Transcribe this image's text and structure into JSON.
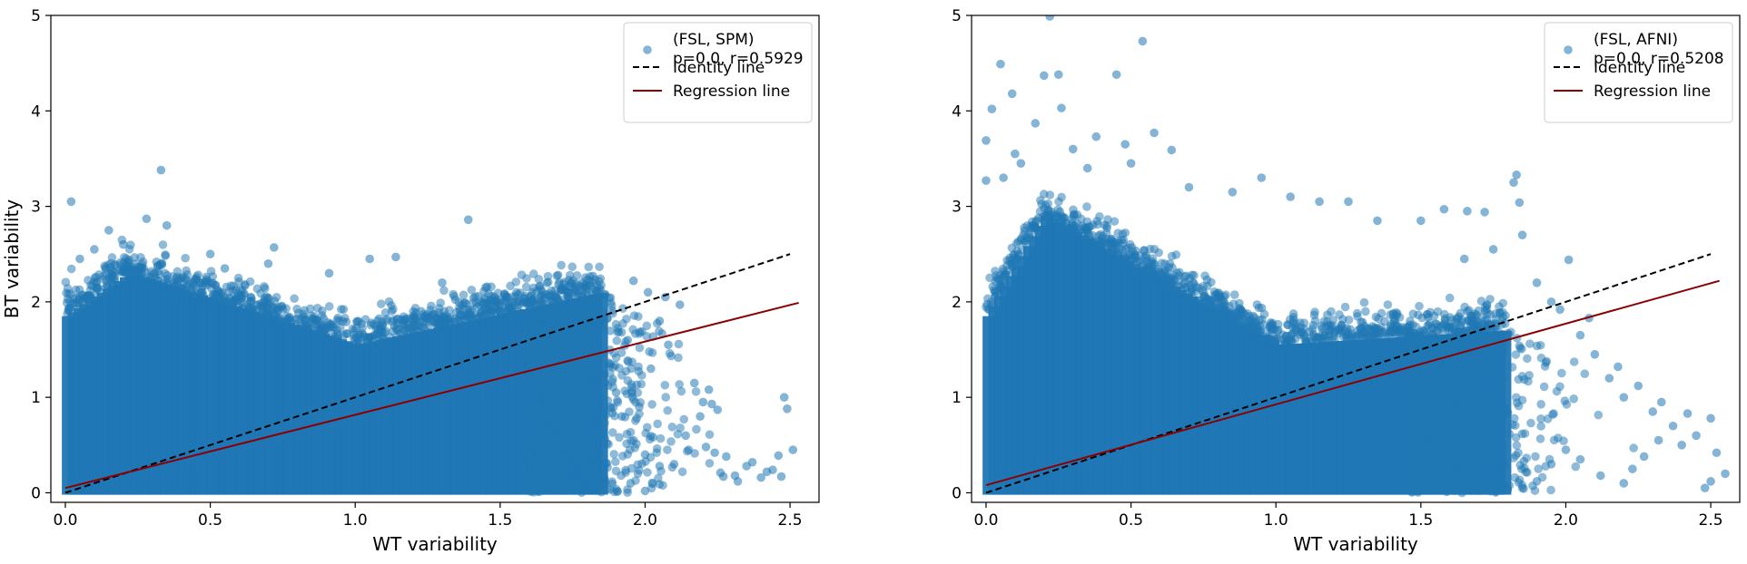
{
  "chart_data": [
    {
      "type": "scatter",
      "xlabel": "WT variability",
      "ylabel": "BT variability",
      "xlim": [
        -0.05,
        2.6
      ],
      "ylim": [
        -0.1,
        5.0
      ],
      "xticks": [
        "0.0",
        "0.5",
        "1.0",
        "1.5",
        "2.0",
        "2.5"
      ],
      "yticks": [
        "0",
        "1",
        "2",
        "3",
        "4",
        "5"
      ],
      "grid": false,
      "legend_position": "top-right",
      "colors": {
        "points": "#1f77b4",
        "identity": "#000000",
        "regression": "#8b0000"
      },
      "legend": [
        {
          "label_line1": "(FSL, SPM)",
          "label_line2": "p=0.0, r=0.5929",
          "kind": "points"
        },
        {
          "label_line1": "Identity line",
          "kind": "identity"
        },
        {
          "label_line1": "Regression line",
          "kind": "regression"
        }
      ],
      "identity_line": {
        "x": [
          0.0,
          2.5
        ],
        "y": [
          0.0,
          2.5
        ]
      },
      "regression_line": {
        "x": [
          0.0,
          2.53
        ],
        "y": [
          0.05,
          1.99
        ]
      },
      "density": {
        "peak_x": 0.22,
        "peak_y": 2.3,
        "end_x": 1.85,
        "end_y": 2.1,
        "edge_x": 1.6,
        "spread": 0.32
      },
      "outliers": [
        [
          0.33,
          3.38
        ],
        [
          1.39,
          2.86
        ],
        [
          0.02,
          3.05
        ],
        [
          0.28,
          2.87
        ],
        [
          0.35,
          2.8
        ],
        [
          0.05,
          2.45
        ],
        [
          0.1,
          2.55
        ],
        [
          0.15,
          2.75
        ],
        [
          0.2,
          2.6
        ],
        [
          0.5,
          2.5
        ],
        [
          0.55,
          2.35
        ],
        [
          0.7,
          2.4
        ],
        [
          0.72,
          2.57
        ],
        [
          0.91,
          2.3
        ],
        [
          1.05,
          2.45
        ],
        [
          1.14,
          2.47
        ],
        [
          1.3,
          2.2
        ],
        [
          1.45,
          2.15
        ],
        [
          1.7,
          2.28
        ],
        [
          1.82,
          2.27
        ],
        [
          1.96,
          2.22
        ],
        [
          2.01,
          2.1
        ],
        [
          2.07,
          2.05
        ],
        [
          2.12,
          1.97
        ],
        [
          2.05,
          1.8
        ],
        [
          2.08,
          1.55
        ],
        [
          2.02,
          1.3
        ],
        [
          2.17,
          1.15
        ],
        [
          2.2,
          0.95
        ],
        [
          2.23,
          0.93
        ],
        [
          2.25,
          0.87
        ],
        [
          2.22,
          1.08
        ],
        [
          2.19,
          0.8
        ],
        [
          2.14,
          0.6
        ],
        [
          2.21,
          0.48
        ],
        [
          2.28,
          0.38
        ],
        [
          2.27,
          0.17
        ],
        [
          2.32,
          0.12
        ],
        [
          2.35,
          0.28
        ],
        [
          2.37,
          0.32
        ],
        [
          2.44,
          0.24
        ],
        [
          2.47,
          0.17
        ],
        [
          2.46,
          0.39
        ],
        [
          2.51,
          0.45
        ],
        [
          2.4,
          0.16
        ],
        [
          2.42,
          0.22
        ],
        [
          2.31,
          0.18
        ],
        [
          2.26,
          0.21
        ],
        [
          2.24,
          0.42
        ],
        [
          2.15,
          0.45
        ],
        [
          2.1,
          0.3
        ],
        [
          2.05,
          0.28
        ],
        [
          2.0,
          0.4
        ],
        [
          1.96,
          0.55
        ],
        [
          1.92,
          0.8
        ],
        [
          1.98,
          0.9
        ],
        [
          1.9,
          1.05
        ],
        [
          1.88,
          1.35
        ],
        [
          1.94,
          1.6
        ],
        [
          1.86,
          0.15
        ],
        [
          1.95,
          0.1
        ],
        [
          2.0,
          0.02
        ],
        [
          2.48,
          1.0
        ],
        [
          2.49,
          0.88
        ],
        [
          1.76,
          0.2
        ],
        [
          1.8,
          0.05
        ]
      ]
    },
    {
      "type": "scatter",
      "xlabel": "WT variability",
      "ylabel": "",
      "xlim": [
        -0.05,
        2.6
      ],
      "ylim": [
        -0.1,
        5.0
      ],
      "xticks": [
        "0.0",
        "0.5",
        "1.0",
        "1.5",
        "2.0",
        "2.5"
      ],
      "yticks": [
        "0",
        "1",
        "2",
        "3",
        "4",
        "5"
      ],
      "grid": false,
      "legend_position": "top-right",
      "colors": {
        "points": "#1f77b4",
        "identity": "#000000",
        "regression": "#8b0000"
      },
      "legend": [
        {
          "label_line1": "(FSL, AFNI)",
          "label_line2": "p=0.0, r=0.5208",
          "kind": "points"
        },
        {
          "label_line1": "Identity line",
          "kind": "identity"
        },
        {
          "label_line1": "Regression line",
          "kind": "regression"
        }
      ],
      "identity_line": {
        "x": [
          0.0,
          2.5
        ],
        "y": [
          0.0,
          2.5
        ]
      },
      "regression_line": {
        "x": [
          0.0,
          2.53
        ],
        "y": [
          0.08,
          2.22
        ]
      },
      "density": {
        "peak_x": 0.2,
        "peak_y": 2.9,
        "end_x": 1.8,
        "end_y": 1.7,
        "edge_x": 1.45,
        "spread": 0.36
      },
      "outliers": [
        [
          0.22,
          4.99
        ],
        [
          0.54,
          4.73
        ],
        [
          0.05,
          4.49
        ],
        [
          0.2,
          4.37
        ],
        [
          0.25,
          4.38
        ],
        [
          0.45,
          4.38
        ],
        [
          0.09,
          4.18
        ],
        [
          0.0,
          3.69
        ],
        [
          0.02,
          4.02
        ],
        [
          0.17,
          3.87
        ],
        [
          0.26,
          4.03
        ],
        [
          0.1,
          3.55
        ],
        [
          0.3,
          3.6
        ],
        [
          0.38,
          3.73
        ],
        [
          0.48,
          3.65
        ],
        [
          0.58,
          3.77
        ],
        [
          0.64,
          3.59
        ],
        [
          0.0,
          3.27
        ],
        [
          0.06,
          3.3
        ],
        [
          0.12,
          3.45
        ],
        [
          0.35,
          3.4
        ],
        [
          0.5,
          3.45
        ],
        [
          0.7,
          3.2
        ],
        [
          0.85,
          3.15
        ],
        [
          0.95,
          3.3
        ],
        [
          1.05,
          3.1
        ],
        [
          1.15,
          3.05
        ],
        [
          1.25,
          3.05
        ],
        [
          1.35,
          2.85
        ],
        [
          1.5,
          2.85
        ],
        [
          1.58,
          2.97
        ],
        [
          1.66,
          2.95
        ],
        [
          1.72,
          2.94
        ],
        [
          1.82,
          3.25
        ],
        [
          1.83,
          3.33
        ],
        [
          1.84,
          3.04
        ],
        [
          1.85,
          2.7
        ],
        [
          1.75,
          2.55
        ],
        [
          1.65,
          2.45
        ],
        [
          1.9,
          2.2
        ],
        [
          1.95,
          2.0
        ],
        [
          2.01,
          2.44
        ],
        [
          2.05,
          1.65
        ],
        [
          2.1,
          1.45
        ],
        [
          2.15,
          1.2
        ],
        [
          2.2,
          1.0
        ],
        [
          2.25,
          1.12
        ],
        [
          2.3,
          0.85
        ],
        [
          2.37,
          0.7
        ],
        [
          2.42,
          0.83
        ],
        [
          2.45,
          0.6
        ],
        [
          2.5,
          0.78
        ],
        [
          2.52,
          0.42
        ],
        [
          2.55,
          0.2
        ],
        [
          2.4,
          0.5
        ],
        [
          2.32,
          0.55
        ],
        [
          2.27,
          0.38
        ],
        [
          2.2,
          0.1
        ],
        [
          2.23,
          0.25
        ],
        [
          2.12,
          0.18
        ],
        [
          2.05,
          0.35
        ],
        [
          2.0,
          0.45
        ],
        [
          1.95,
          0.3
        ],
        [
          1.9,
          0.12
        ],
        [
          1.85,
          0.05
        ],
        [
          2.48,
          0.05
        ],
        [
          2.5,
          0.12
        ],
        [
          2.33,
          0.95
        ],
        [
          2.18,
          1.32
        ],
        [
          2.08,
          1.83
        ],
        [
          1.98,
          1.92
        ]
      ]
    }
  ]
}
